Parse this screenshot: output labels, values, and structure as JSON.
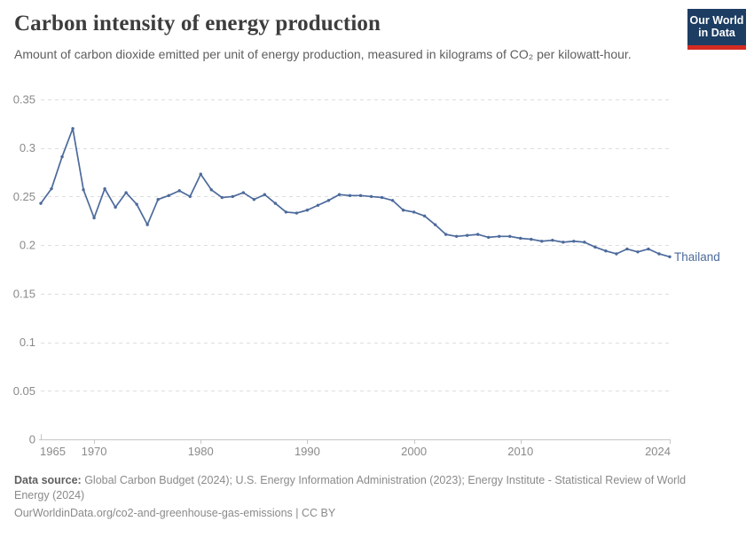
{
  "header": {
    "title": "Carbon intensity of energy production",
    "subtitle": "Amount of carbon dioxide emitted per unit of energy production, measured in kilograms of CO₂ per kilowatt-hour.",
    "logo": {
      "line1": "Our World",
      "line2": "in Data"
    }
  },
  "chart_data": {
    "type": "line",
    "title": "Carbon intensity of energy production",
    "xlabel": "",
    "ylabel": "",
    "xlim": [
      1965,
      2024
    ],
    "ylim": [
      0,
      0.35
    ],
    "grid": "horizontal-dashed",
    "legend_position": "end-of-line-label",
    "x_ticks": [
      {
        "value": 1965,
        "label": "1965",
        "anchor": "start"
      },
      {
        "value": 1970,
        "label": "1970"
      },
      {
        "value": 1980,
        "label": "1980"
      },
      {
        "value": 1990,
        "label": "1990"
      },
      {
        "value": 2000,
        "label": "2000"
      },
      {
        "value": 2010,
        "label": "2010"
      },
      {
        "value": 2024,
        "label": "2024",
        "anchor": "end"
      }
    ],
    "y_ticks": [
      {
        "value": 0,
        "label": "0"
      },
      {
        "value": 0.05,
        "label": "0.05"
      },
      {
        "value": 0.1,
        "label": "0.1"
      },
      {
        "value": 0.15,
        "label": "0.15"
      },
      {
        "value": 0.2,
        "label": "0.2"
      },
      {
        "value": 0.25,
        "label": "0.25"
      },
      {
        "value": 0.3,
        "label": "0.3"
      },
      {
        "value": 0.35,
        "label": "0.35"
      }
    ],
    "series": [
      {
        "name": "Thailand",
        "color": "#4c6a9c",
        "x": [
          1965,
          1966,
          1967,
          1968,
          1969,
          1970,
          1971,
          1972,
          1973,
          1974,
          1975,
          1976,
          1977,
          1978,
          1979,
          1980,
          1981,
          1982,
          1983,
          1984,
          1985,
          1986,
          1987,
          1988,
          1989,
          1990,
          1991,
          1992,
          1993,
          1994,
          1995,
          1996,
          1997,
          1998,
          1999,
          2000,
          2001,
          2002,
          2003,
          2004,
          2005,
          2006,
          2007,
          2008,
          2009,
          2010,
          2011,
          2012,
          2013,
          2014,
          2015,
          2016,
          2017,
          2018,
          2019,
          2020,
          2021,
          2022,
          2023,
          2024
        ],
        "values": [
          0.243,
          0.258,
          0.291,
          0.32,
          0.257,
          0.228,
          0.258,
          0.239,
          0.254,
          0.242,
          0.221,
          0.247,
          0.251,
          0.256,
          0.25,
          0.273,
          0.257,
          0.249,
          0.25,
          0.254,
          0.247,
          0.252,
          0.243,
          0.234,
          0.233,
          0.236,
          0.241,
          0.246,
          0.252,
          0.251,
          0.251,
          0.25,
          0.249,
          0.246,
          0.236,
          0.234,
          0.23,
          0.221,
          0.211,
          0.209,
          0.21,
          0.211,
          0.208,
          0.209,
          0.209,
          0.207,
          0.206,
          0.204,
          0.205,
          0.203,
          0.204,
          0.203,
          0.198,
          0.194,
          0.191,
          0.196,
          0.193,
          0.196,
          0.191,
          0.188
        ]
      }
    ]
  },
  "footer": {
    "data_source_label": "Data source:",
    "data_source_text": " Global Carbon Budget (2024); U.S. Energy Information Administration (2023); Energy Institute - Statistical Review of World Energy (2024)",
    "link_line": "OurWorldinData.org/co2-and-greenhouse-gas-emissions | CC BY"
  },
  "colors": {
    "line": "#4c6a9c",
    "logo_background": "#1d3d63",
    "logo_accent": "#d42b21"
  }
}
